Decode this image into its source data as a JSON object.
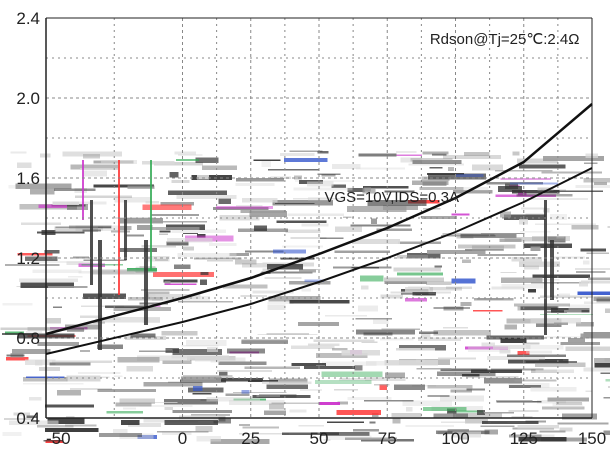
{
  "chart_data": {
    "type": "line",
    "title": "",
    "xlabel": "",
    "ylabel": "",
    "xlim": [
      -50,
      150
    ],
    "ylim": [
      0.4,
      2.4
    ],
    "x_ticks": [
      -50,
      0,
      25,
      50,
      75,
      100,
      125,
      150
    ],
    "x_tick_labels": [
      "-50",
      "0",
      "25",
      "50",
      "75",
      "100",
      "125",
      "150"
    ],
    "y_ticks": [
      0.4,
      0.8,
      1.2,
      1.6,
      2.0,
      2.4
    ],
    "y_tick_labels": [
      "0.4",
      "0.8",
      "1.2",
      "1.6",
      "2.0",
      "2.4"
    ],
    "grid": true,
    "series": [
      {
        "x": [
          -50,
          0,
          25,
          50,
          75,
          100,
          125,
          150
        ],
        "values": [
          0.82,
          1.0,
          1.1,
          1.22,
          1.35,
          1.5,
          1.68,
          1.97
        ]
      },
      {
        "x": [
          -50,
          0,
          25,
          50,
          75,
          100,
          125,
          150
        ],
        "values": [
          0.72,
          0.88,
          0.97,
          1.08,
          1.2,
          1.33,
          1.48,
          1.65
        ]
      }
    ],
    "annotations": [
      {
        "text": "Rdson@Tj=25℃:2.4Ω",
        "x": 118,
        "y": 2.27
      },
      {
        "text": "VGS=10V,IDS=0.3A",
        "x": 52,
        "y": 1.48
      }
    ],
    "colors": {
      "line": "#111111",
      "grid": "#888888",
      "axis": "#222222",
      "noise": [
        "#333333",
        "#9a9a9a",
        "#d9d9d9",
        "#cc33cc",
        "#3355cc",
        "#33aa55",
        "#ff3333"
      ]
    }
  }
}
